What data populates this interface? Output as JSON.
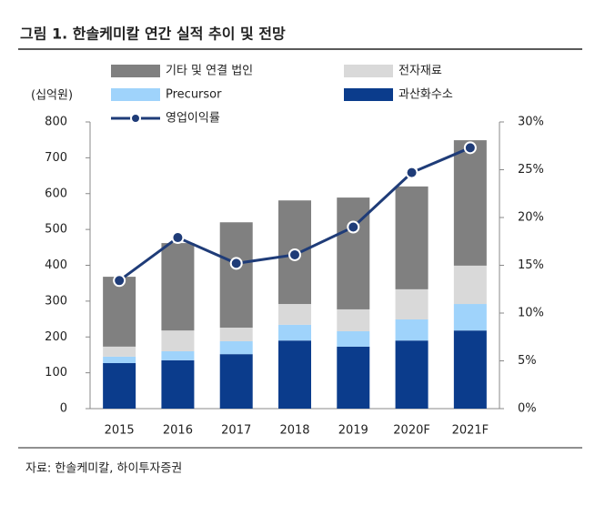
{
  "chart_data": {
    "type": "bar",
    "title": "그림 1. 한솔케미칼 연간 실적 추이 및 전망",
    "y_label": "(십억원)",
    "source": "자료: 한솔케미칼, 하이투자증권",
    "stacked": true,
    "categories": [
      "2015",
      "2016",
      "2017",
      "2018",
      "2019",
      "2020F",
      "2021F"
    ],
    "series": [
      {
        "name": "과산화수소",
        "color": "#0b3c8c",
        "values": [
          127,
          135,
          152,
          190,
          173,
          190,
          218
        ]
      },
      {
        "name": "Precursor",
        "color": "#9fd3fb",
        "values": [
          18,
          25,
          36,
          44,
          43,
          59,
          74
        ]
      },
      {
        "name": "전자재료",
        "color": "#d9d9d9",
        "values": [
          28,
          58,
          38,
          58,
          61,
          84,
          107
        ]
      },
      {
        "name": "기타 및 연결 법인",
        "color": "#808080",
        "values": [
          195,
          244,
          294,
          289,
          312,
          287,
          350
        ]
      },
      {
        "name": "영업이익률",
        "color": "#1f3c78",
        "type": "line",
        "axis": "y2",
        "values": [
          13.4,
          17.9,
          15.2,
          16.1,
          19.0,
          24.7,
          27.3
        ]
      }
    ],
    "ylim": [
      0,
      800
    ],
    "yticks": [
      0,
      100,
      200,
      300,
      400,
      500,
      600,
      700,
      800
    ],
    "y2lim": [
      0,
      30
    ],
    "y2ticks": [
      {
        "value": 0,
        "label": "0%"
      },
      {
        "value": 5,
        "label": "5%"
      },
      {
        "value": 10,
        "label": "10%"
      },
      {
        "value": 15,
        "label": "15%"
      },
      {
        "value": 20,
        "label": "20%"
      },
      {
        "value": 25,
        "label": "25%"
      },
      {
        "value": 30,
        "label": "30%"
      }
    ]
  }
}
